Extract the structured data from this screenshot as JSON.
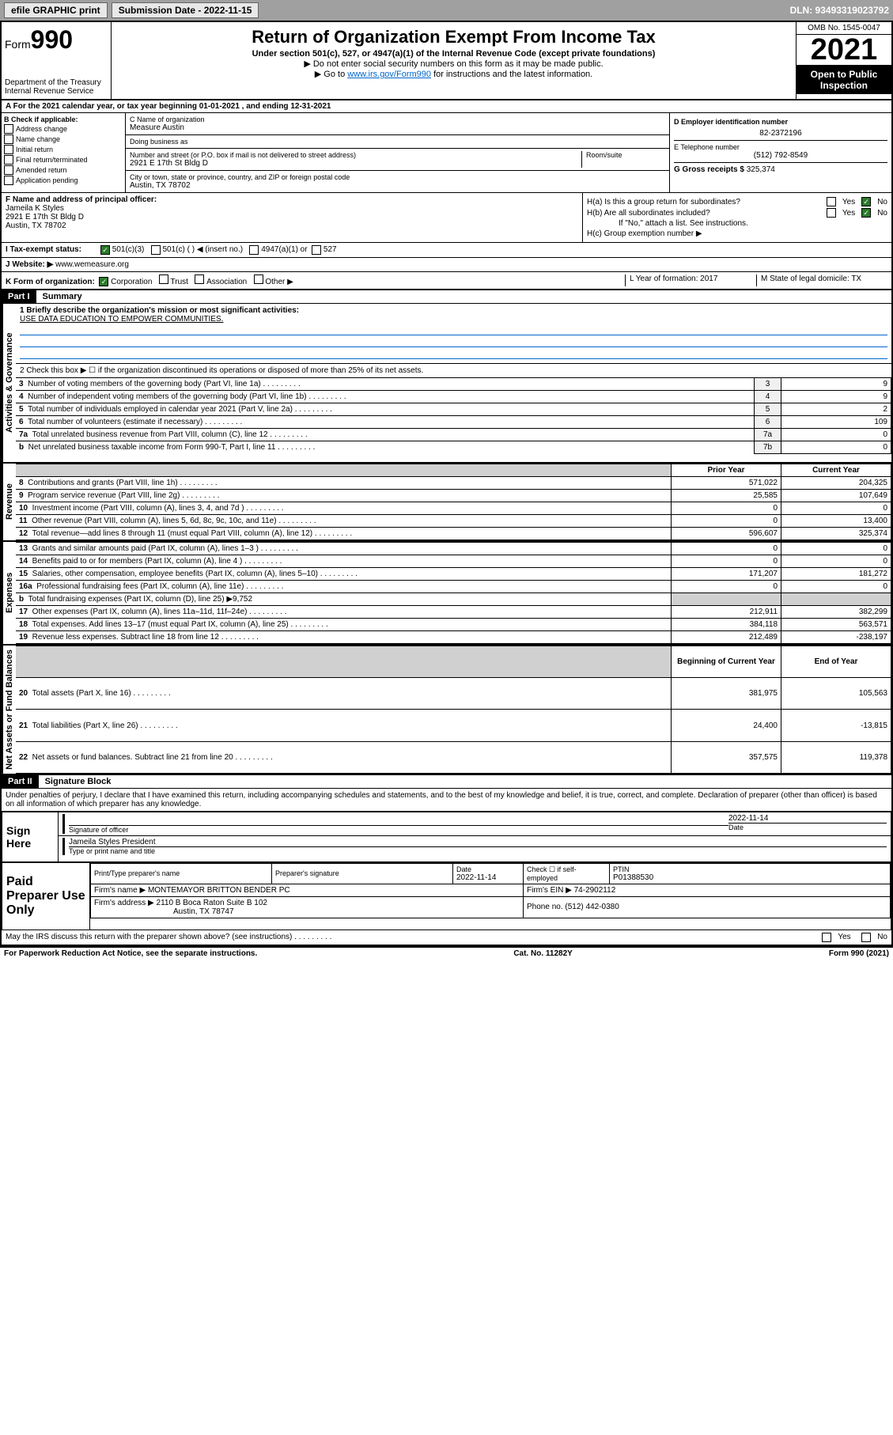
{
  "topbar": {
    "efile": "efile GRAPHIC print",
    "submission_label": "Submission Date - 2022-11-15",
    "dln": "DLN: 93493319023792"
  },
  "header": {
    "form_label": "Form",
    "form_number": "990",
    "dept": "Department of the Treasury Internal Revenue Service",
    "title": "Return of Organization Exempt From Income Tax",
    "subtitle": "Under section 501(c), 527, or 4947(a)(1) of the Internal Revenue Code (except private foundations)",
    "note1": "▶ Do not enter social security numbers on this form as it may be made public.",
    "note2_pre": "▶ Go to ",
    "note2_link": "www.irs.gov/Form990",
    "note2_post": " for instructions and the latest information.",
    "omb": "OMB No. 1545-0047",
    "year": "2021",
    "open": "Open to Public Inspection"
  },
  "line_a": "A For the 2021 calendar year, or tax year beginning 01-01-2021    , and ending 12-31-2021",
  "col_b": {
    "title": "B Check if applicable:",
    "items": [
      "Address change",
      "Name change",
      "Initial return",
      "Final return/terminated",
      "Amended return",
      "Application pending"
    ]
  },
  "col_c": {
    "name_label": "C Name of organization",
    "name": "Measure Austin",
    "dba_label": "Doing business as",
    "addr_label": "Number and street (or P.O. box if mail is not delivered to street address)",
    "addr": "2921 E 17th St Bldg D",
    "suite_label": "Room/suite",
    "city_label": "City or town, state or province, country, and ZIP or foreign postal code",
    "city": "Austin, TX  78702"
  },
  "col_d": {
    "ein_label": "D Employer identification number",
    "ein": "82-2372196",
    "tel_label": "E Telephone number",
    "tel": "(512) 792-8549",
    "gross_label": "G Gross receipts $",
    "gross": "325,374"
  },
  "col_f": {
    "label": "F Name and address of principal officer:",
    "name": "Jameila K Styles",
    "addr1": "2921 E 17th St Bldg D",
    "addr2": "Austin, TX  78702"
  },
  "col_h": {
    "ha": "H(a)  Is this a group return for subordinates?",
    "hb": "H(b)  Are all subordinates included?",
    "hb_note": "If \"No,\" attach a list. See instructions.",
    "hc": "H(c)  Group exemption number ▶"
  },
  "row_i": {
    "label": "I   Tax-exempt status:",
    "opt1": "501(c)(3)",
    "opt2": "501(c) (  ) ◀ (insert no.)",
    "opt3": "4947(a)(1) or",
    "opt4": "527"
  },
  "row_j": {
    "label": "J   Website: ▶",
    "value": "www.wemeasure.org"
  },
  "row_k": {
    "label": "K Form of organization:",
    "opts": [
      "Corporation",
      "Trust",
      "Association",
      "Other ▶"
    ],
    "l": "L Year of formation: 2017",
    "m": "M State of legal domicile: TX"
  },
  "part1": {
    "header": "Part I",
    "title": "Summary",
    "line1_label": "1   Briefly describe the organization's mission or most significant activities:",
    "line1_text": "USE DATA EDUCATION TO EMPOWER COMMUNITIES.",
    "line2": "2    Check this box ▶ ☐  if the organization discontinued its operations or disposed of more than 25% of its net assets.",
    "lines": [
      {
        "n": "3",
        "t": "Number of voting members of the governing body (Part VI, line 1a)",
        "box": "3",
        "v": "9"
      },
      {
        "n": "4",
        "t": "Number of independent voting members of the governing body (Part VI, line 1b)",
        "box": "4",
        "v": "9"
      },
      {
        "n": "5",
        "t": "Total number of individuals employed in calendar year 2021 (Part V, line 2a)",
        "box": "5",
        "v": "2"
      },
      {
        "n": "6",
        "t": "Total number of volunteers (estimate if necessary)",
        "box": "6",
        "v": "109"
      },
      {
        "n": "7a",
        "t": "Total unrelated business revenue from Part VIII, column (C), line 12",
        "box": "7a",
        "v": "0"
      },
      {
        "n": "b",
        "t": "Net unrelated business taxable income from Form 990-T, Part I, line 11",
        "box": "7b",
        "v": "0"
      }
    ],
    "year_cols": {
      "prior": "Prior Year",
      "current": "Current Year",
      "beg": "Beginning of Current Year",
      "end": "End of Year"
    },
    "revenue": [
      {
        "n": "8",
        "t": "Contributions and grants (Part VIII, line 1h)",
        "p": "571,022",
        "c": "204,325"
      },
      {
        "n": "9",
        "t": "Program service revenue (Part VIII, line 2g)",
        "p": "25,585",
        "c": "107,649"
      },
      {
        "n": "10",
        "t": "Investment income (Part VIII, column (A), lines 3, 4, and 7d )",
        "p": "0",
        "c": "0"
      },
      {
        "n": "11",
        "t": "Other revenue (Part VIII, column (A), lines 5, 6d, 8c, 9c, 10c, and 11e)",
        "p": "0",
        "c": "13,400"
      },
      {
        "n": "12",
        "t": "Total revenue—add lines 8 through 11 (must equal Part VIII, column (A), line 12)",
        "p": "596,607",
        "c": "325,374"
      }
    ],
    "expenses": [
      {
        "n": "13",
        "t": "Grants and similar amounts paid (Part IX, column (A), lines 1–3 )",
        "p": "0",
        "c": "0"
      },
      {
        "n": "14",
        "t": "Benefits paid to or for members (Part IX, column (A), line 4 )",
        "p": "0",
        "c": "0"
      },
      {
        "n": "15",
        "t": "Salaries, other compensation, employee benefits (Part IX, column (A), lines 5–10)",
        "p": "171,207",
        "c": "181,272"
      },
      {
        "n": "16a",
        "t": "Professional fundraising fees (Part IX, column (A), line 11e)",
        "p": "0",
        "c": "0"
      },
      {
        "n": "b",
        "t": "Total fundraising expenses (Part IX, column (D), line 25) ▶9,752",
        "p": "",
        "c": "",
        "shaded": true
      },
      {
        "n": "17",
        "t": "Other expenses (Part IX, column (A), lines 11a–11d, 11f–24e)",
        "p": "212,911",
        "c": "382,299"
      },
      {
        "n": "18",
        "t": "Total expenses. Add lines 13–17 (must equal Part IX, column (A), line 25)",
        "p": "384,118",
        "c": "563,571"
      },
      {
        "n": "19",
        "t": "Revenue less expenses. Subtract line 18 from line 12",
        "p": "212,489",
        "c": "-238,197"
      }
    ],
    "balances": [
      {
        "n": "20",
        "t": "Total assets (Part X, line 16)",
        "p": "381,975",
        "c": "105,563"
      },
      {
        "n": "21",
        "t": "Total liabilities (Part X, line 26)",
        "p": "24,400",
        "c": "-13,815"
      },
      {
        "n": "22",
        "t": "Net assets or fund balances. Subtract line 21 from line 20",
        "p": "357,575",
        "c": "119,378"
      }
    ],
    "vlabels": {
      "gov": "Activities & Governance",
      "rev": "Revenue",
      "exp": "Expenses",
      "bal": "Net Assets or Fund Balances"
    }
  },
  "part2": {
    "header": "Part II",
    "title": "Signature Block",
    "declaration": "Under penalties of perjury, I declare that I have examined this return, including accompanying schedules and statements, and to the best of my knowledge and belief, it is true, correct, and complete. Declaration of preparer (other than officer) is based on all information of which preparer has any knowledge.",
    "sign_here": "Sign Here",
    "sig_officer": "Signature of officer",
    "sig_date": "2022-11-14",
    "sig_date_label": "Date",
    "sig_name": "Jameila Styles President",
    "sig_name_label": "Type or print name and title",
    "paid_label": "Paid Preparer Use Only",
    "prep_cols": {
      "name": "Print/Type preparer's name",
      "sig": "Preparer's signature",
      "date": "Date",
      "date_v": "2022-11-14",
      "check": "Check ☐ if self-employed",
      "ptin_l": "PTIN",
      "ptin": "P01388530"
    },
    "firm_name_l": "Firm's name    ▶",
    "firm_name": "MONTEMAYOR BRITTON BENDER PC",
    "firm_ein_l": "Firm's EIN ▶",
    "firm_ein": "74-2902112",
    "firm_addr_l": "Firm's address ▶",
    "firm_addr": "2110 B Boca Raton Suite B 102",
    "firm_city": "Austin, TX  78747",
    "firm_phone_l": "Phone no.",
    "firm_phone": "(512) 442-0380",
    "discuss": "May the IRS discuss this return with the preparer shown above? (see instructions)"
  },
  "footer": {
    "left": "For Paperwork Reduction Act Notice, see the separate instructions.",
    "center": "Cat. No. 11282Y",
    "right": "Form 990 (2021)"
  }
}
